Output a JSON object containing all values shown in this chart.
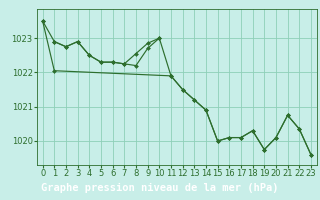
{
  "title": "Graphe pression niveau de la mer (hPa)",
  "bg_color": "#b3e8e0",
  "plot_bg_color": "#c8eee8",
  "footer_bg_color": "#5a9e78",
  "line_color": "#2d6e2d",
  "marker_color": "#2d6e2d",
  "grid_color": "#8ecfb8",
  "tick_color": "#2d6e2d",
  "xlabel_color": "#ffffff",
  "xlim": [
    -0.5,
    23.5
  ],
  "ylim": [
    1019.3,
    1023.85
  ],
  "yticks": [
    1020,
    1021,
    1022,
    1023
  ],
  "xticks": [
    0,
    1,
    2,
    3,
    4,
    5,
    6,
    7,
    8,
    9,
    10,
    11,
    12,
    13,
    14,
    15,
    16,
    17,
    18,
    19,
    20,
    21,
    22,
    23
  ],
  "series": [
    [
      1023.5,
      1022.9,
      1022.75,
      1022.9,
      1022.5,
      1022.3,
      1022.3,
      1022.25,
      1022.2,
      1022.7,
      1023.0,
      1021.9,
      1021.5,
      1021.2,
      1020.9,
      1020.0,
      1020.1,
      1020.1,
      1020.3,
      1019.75,
      1020.1,
      1020.75,
      1020.35,
      1019.6
    ],
    [
      null,
      1022.9,
      1022.75,
      1022.9,
      1022.5,
      1022.3,
      1022.3,
      1022.25,
      1022.55,
      1022.85,
      1023.0,
      null,
      null,
      null,
      null,
      null,
      null,
      null,
      null,
      null,
      null,
      null,
      null,
      null
    ],
    [
      1023.5,
      1022.05,
      null,
      null,
      null,
      null,
      null,
      null,
      null,
      null,
      null,
      1021.9,
      1021.5,
      1021.2,
      1020.9,
      1020.0,
      1020.1,
      1020.1,
      1020.3,
      1019.75,
      1020.1,
      1020.75,
      1020.35,
      1019.6
    ]
  ],
  "title_fontsize": 7.5,
  "tick_fontsize": 6.0
}
